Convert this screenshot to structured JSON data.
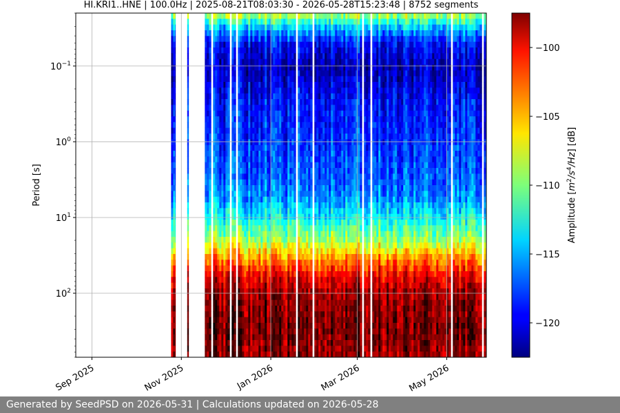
{
  "chart_data": {
    "type": "heatmap",
    "title": "HI.KRI1..HNE | 100.0Hz | 2025-08-21T08:03:30 - 2026-05-28T15:23:48 | 8752 segments",
    "xlabel": "",
    "ylabel": "Period [s]",
    "x_range": [
      "2025-08-21",
      "2026-05-28"
    ],
    "x_ticks": [
      {
        "date": "2025-09-01",
        "label": "Sep 2025"
      },
      {
        "date": "2025-11-01",
        "label": "Nov 2025"
      },
      {
        "date": "2026-01-01",
        "label": "Jan 2026"
      },
      {
        "date": "2026-03-01",
        "label": "Mar 2026"
      },
      {
        "date": "2026-05-01",
        "label": "May 2026"
      }
    ],
    "y_scale": "log",
    "y_inverted": true,
    "y_range": [
      0.02,
      700
    ],
    "y_ticks": [
      {
        "value": 0.1,
        "base": "10",
        "exp": "−1"
      },
      {
        "value": 1,
        "base": "10",
        "exp": "0"
      },
      {
        "value": 10,
        "base": "10",
        "exp": "1"
      },
      {
        "value": 100,
        "base": "10",
        "exp": "2"
      }
    ],
    "grid": true,
    "colormap": "jet",
    "colorbar": {
      "label_parts": [
        "Amplitude [",
        "m",
        "2",
        "/",
        "s",
        "4",
        "/",
        "Hz",
        "] [dB]"
      ],
      "range": [
        -122.5,
        -97.5
      ],
      "ticks": [
        {
          "value": -100,
          "label": "−100"
        },
        {
          "value": -105,
          "label": "−105"
        },
        {
          "value": -110,
          "label": "−110"
        },
        {
          "value": -115,
          "label": "−115"
        },
        {
          "value": -120,
          "label": "−120"
        }
      ]
    },
    "data_coverage": [
      {
        "start": "2025-10-25",
        "end": "2025-10-28"
      },
      {
        "start": "2025-11-05",
        "end": "2025-11-05"
      },
      {
        "start": "2025-11-17",
        "end": "2026-05-28"
      }
    ],
    "amplitude_profile_db": [
      {
        "period": 0.02,
        "db": -108
      },
      {
        "period": 0.03,
        "db": -114
      },
      {
        "period": 0.05,
        "db": -119
      },
      {
        "period": 0.1,
        "db": -121
      },
      {
        "period": 0.3,
        "db": -119
      },
      {
        "period": 1,
        "db": -118
      },
      {
        "period": 3,
        "db": -117
      },
      {
        "period": 5,
        "db": -116
      },
      {
        "period": 10,
        "db": -113
      },
      {
        "period": 20,
        "db": -109
      },
      {
        "period": 35,
        "db": -104
      },
      {
        "period": 60,
        "db": -100
      },
      {
        "period": 100,
        "db": -98
      },
      {
        "period": 300,
        "db": -97
      },
      {
        "period": 700,
        "db": -98
      }
    ]
  },
  "footer": {
    "text": "Generated by SeedPSD on 2026-05-31 | Calculations updated on 2026-05-28"
  }
}
